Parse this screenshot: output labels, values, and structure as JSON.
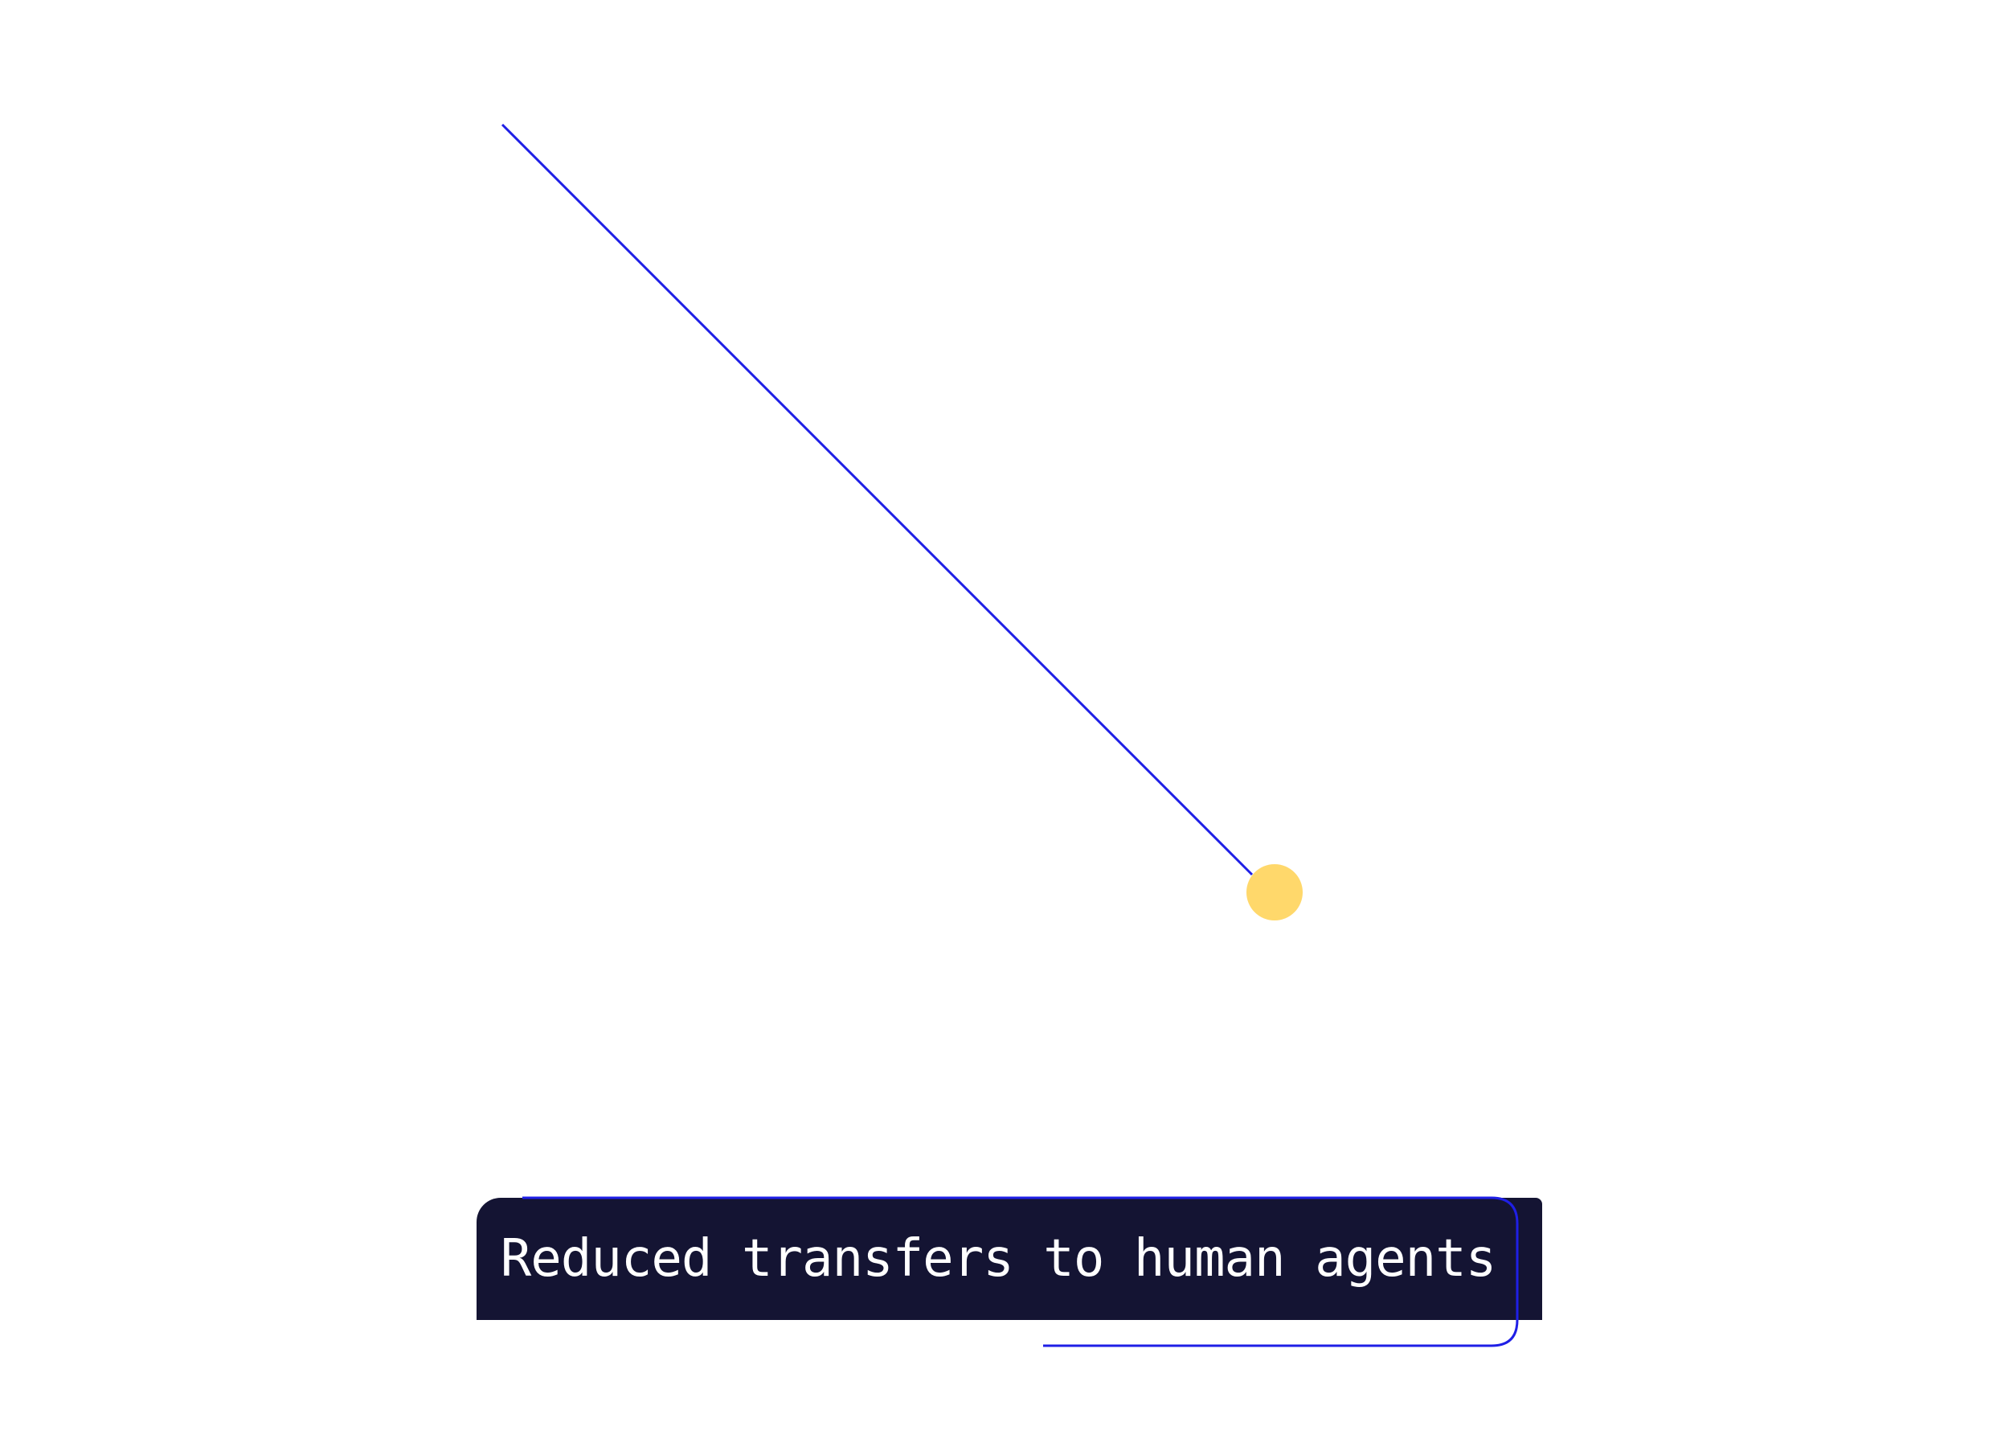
{
  "callout": {
    "label": "Reduced transfers to human agents"
  },
  "colors": {
    "line": "#1f1fe6",
    "marker": "#ffd86b",
    "box": "#141433",
    "text": "#ffffff",
    "background": "#ffffff"
  }
}
